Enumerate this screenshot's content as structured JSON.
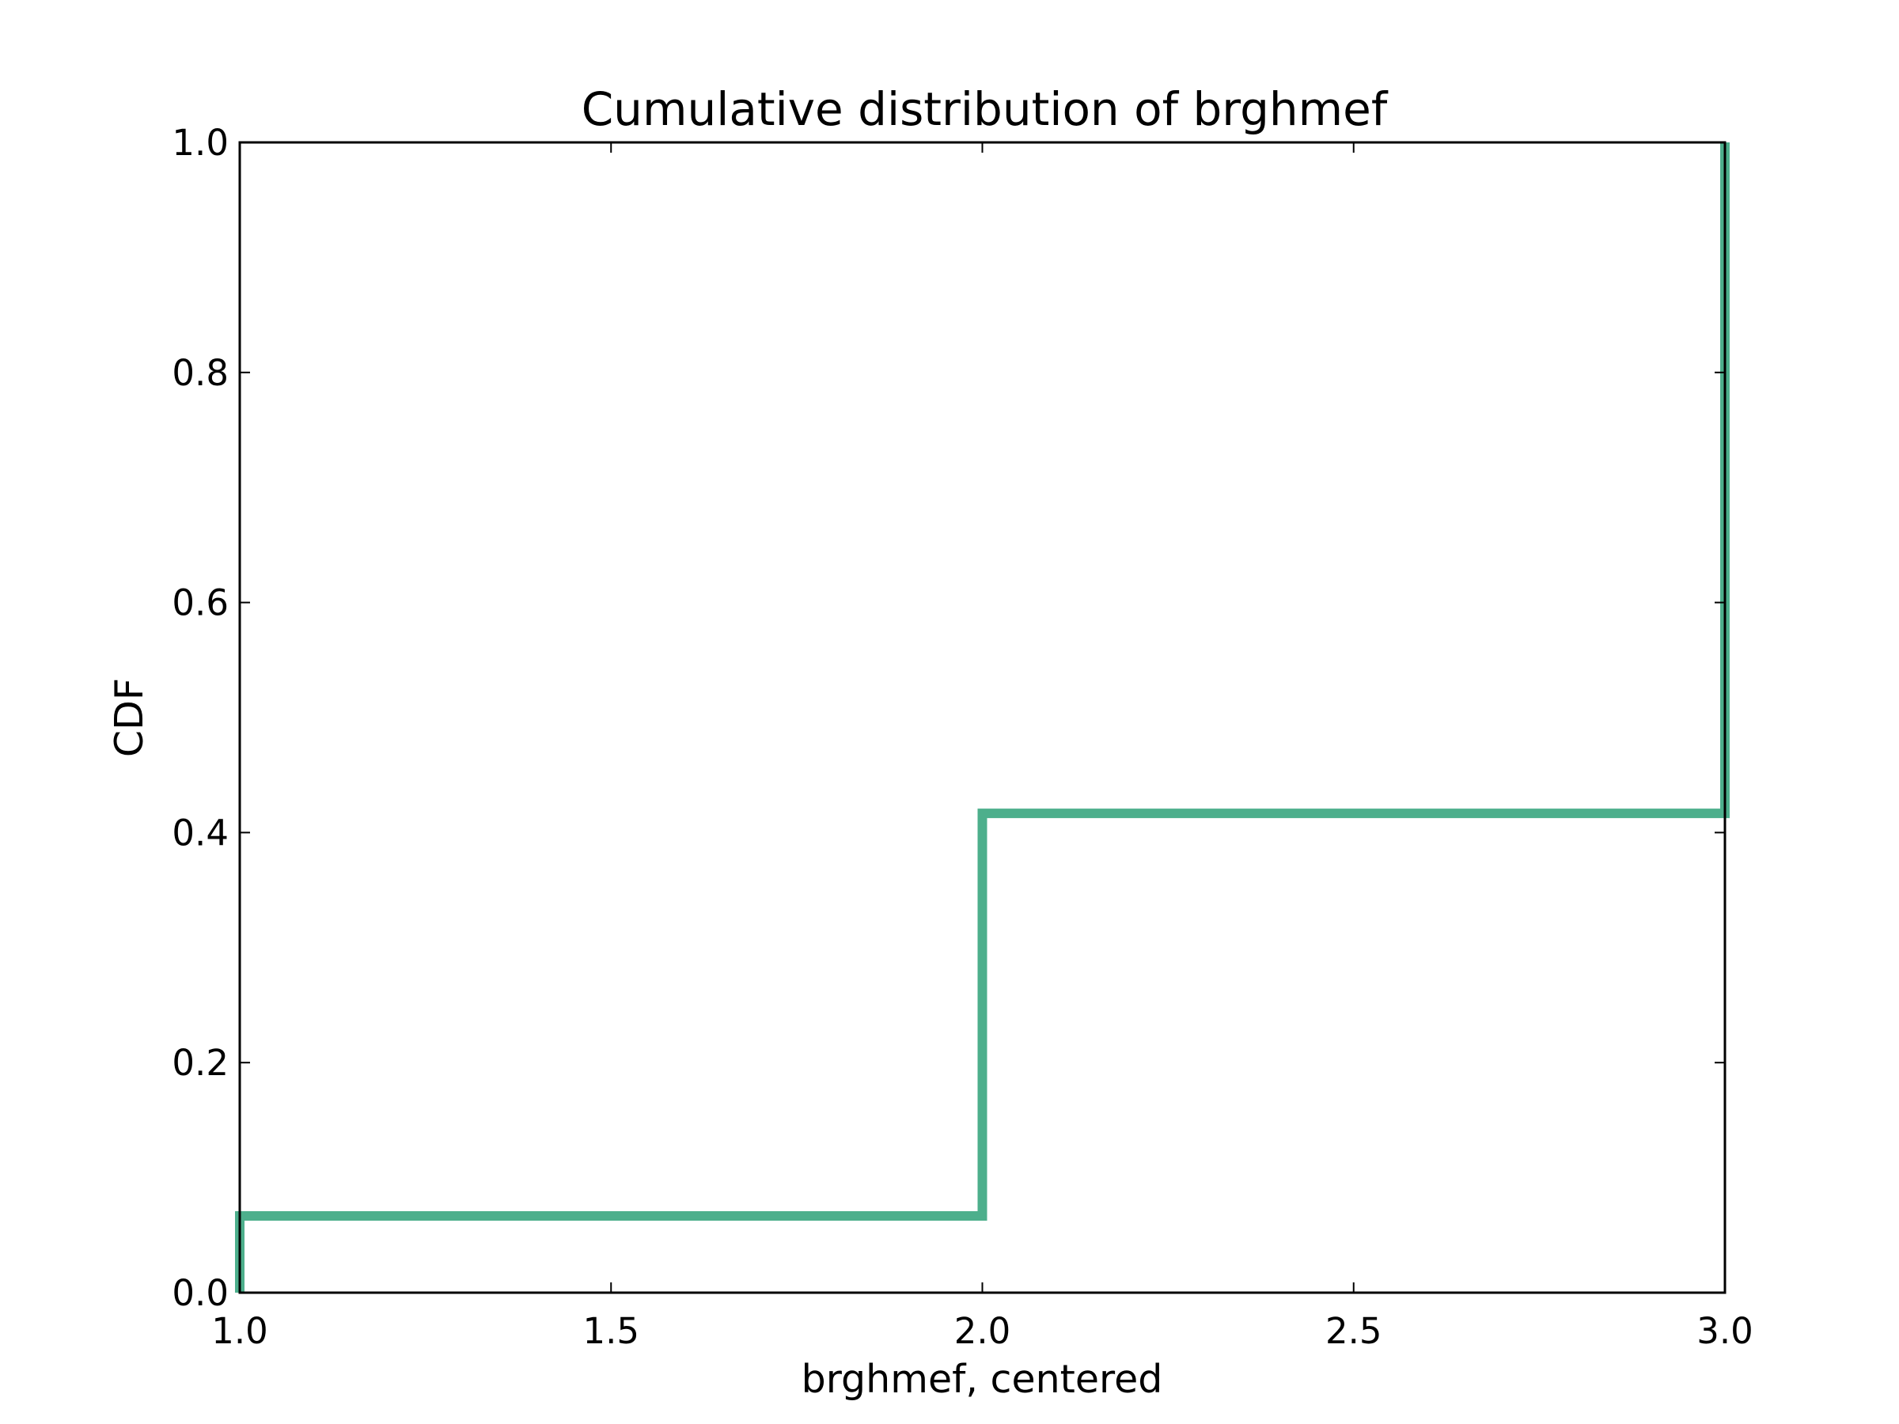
{
  "chart_data": {
    "type": "line",
    "style": "step",
    "title": "Cumulative distribution of brghmef",
    "xlabel": "brghmef, centered",
    "ylabel": "CDF",
    "xlim": [
      1.0,
      3.0
    ],
    "ylim": [
      0.0,
      1.0
    ],
    "x_ticks": [
      1.0,
      1.5,
      2.0,
      2.5,
      3.0
    ],
    "x_tick_labels": [
      "1.0",
      "1.5",
      "2.0",
      "2.5",
      "3.0"
    ],
    "y_ticks": [
      0.0,
      0.2,
      0.4,
      0.6,
      0.8,
      1.0
    ],
    "y_tick_labels": [
      "0.0",
      "0.2",
      "0.4",
      "0.6",
      "0.8",
      "1.0"
    ],
    "grid": false,
    "series": [
      {
        "color": "#4daf8c",
        "x": [
          1.0,
          1.0,
          2.0,
          2.0,
          3.0,
          3.0
        ],
        "y": [
          0.0,
          0.0667,
          0.0667,
          0.4167,
          0.4167,
          1.0
        ]
      }
    ]
  }
}
